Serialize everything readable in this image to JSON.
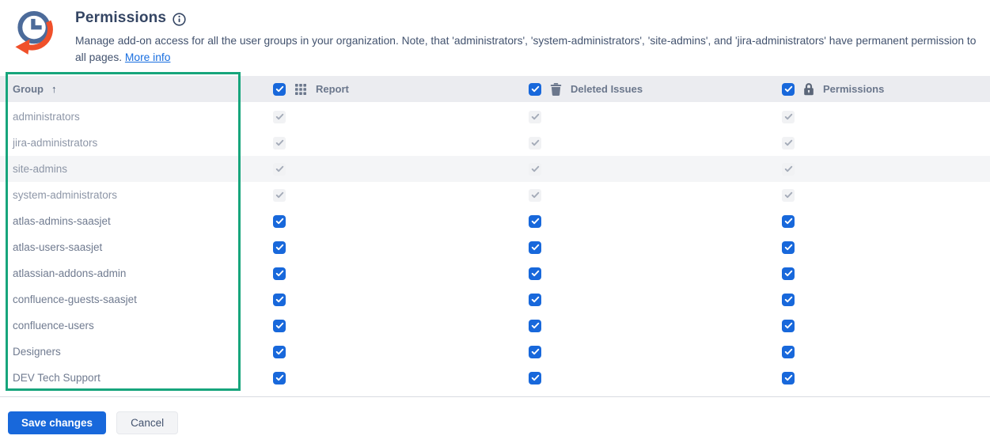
{
  "header": {
    "title": "Permissions",
    "description": "Manage add-on access for all the user groups in your organization. Note, that 'administrators', 'system-administrators', 'site-admins', and 'jira-administrators' have permanent permission to all pages.",
    "more_info_label": "More info"
  },
  "table": {
    "group_column": {
      "label": "Group",
      "sort_direction": "ascending",
      "sort_glyph": "↑"
    },
    "columns": [
      {
        "id": "report",
        "label": "Report",
        "icon": "grid-icon",
        "header_checked": true
      },
      {
        "id": "deleted_issues",
        "label": "Deleted Issues",
        "icon": "trash-icon",
        "header_checked": true
      },
      {
        "id": "permissions",
        "label": "Permissions",
        "icon": "lock-icon",
        "header_checked": true
      }
    ],
    "rows": [
      {
        "group": "administrators",
        "report": true,
        "deleted_issues": true,
        "permissions": true,
        "disabled": true,
        "highlighted": false
      },
      {
        "group": "jira-administrators",
        "report": true,
        "deleted_issues": true,
        "permissions": true,
        "disabled": true,
        "highlighted": false
      },
      {
        "group": "site-admins",
        "report": true,
        "deleted_issues": true,
        "permissions": true,
        "disabled": true,
        "highlighted": true
      },
      {
        "group": "system-administrators",
        "report": true,
        "deleted_issues": true,
        "permissions": true,
        "disabled": true,
        "highlighted": false
      },
      {
        "group": "atlas-admins-saasjet",
        "report": true,
        "deleted_issues": true,
        "permissions": true,
        "disabled": false,
        "highlighted": false
      },
      {
        "group": "atlas-users-saasjet",
        "report": true,
        "deleted_issues": true,
        "permissions": true,
        "disabled": false,
        "highlighted": false
      },
      {
        "group": "atlassian-addons-admin",
        "report": true,
        "deleted_issues": true,
        "permissions": true,
        "disabled": false,
        "highlighted": false
      },
      {
        "group": "confluence-guests-saasjet",
        "report": true,
        "deleted_issues": true,
        "permissions": true,
        "disabled": false,
        "highlighted": false
      },
      {
        "group": "confluence-users",
        "report": true,
        "deleted_issues": true,
        "permissions": true,
        "disabled": false,
        "highlighted": false
      },
      {
        "group": "Designers",
        "report": true,
        "deleted_issues": true,
        "permissions": true,
        "disabled": false,
        "highlighted": false
      },
      {
        "group": "DEV Tech Support",
        "report": true,
        "deleted_issues": true,
        "permissions": true,
        "disabled": false,
        "highlighted": false
      }
    ]
  },
  "annotation": {
    "type": "highlight-box",
    "target": "group-column",
    "color": "#17a57c"
  },
  "actions": {
    "save_label": "Save changes",
    "cancel_label": "Cancel"
  },
  "colors": {
    "accent_blue": "#1868db",
    "link_blue": "#1a6fe0",
    "header_bg": "#ebecf0",
    "row_highlight": "#f4f5f7",
    "annotation_green": "#17a57c",
    "logo_blue": "#4c6b9a",
    "logo_orange": "#f0502a"
  }
}
